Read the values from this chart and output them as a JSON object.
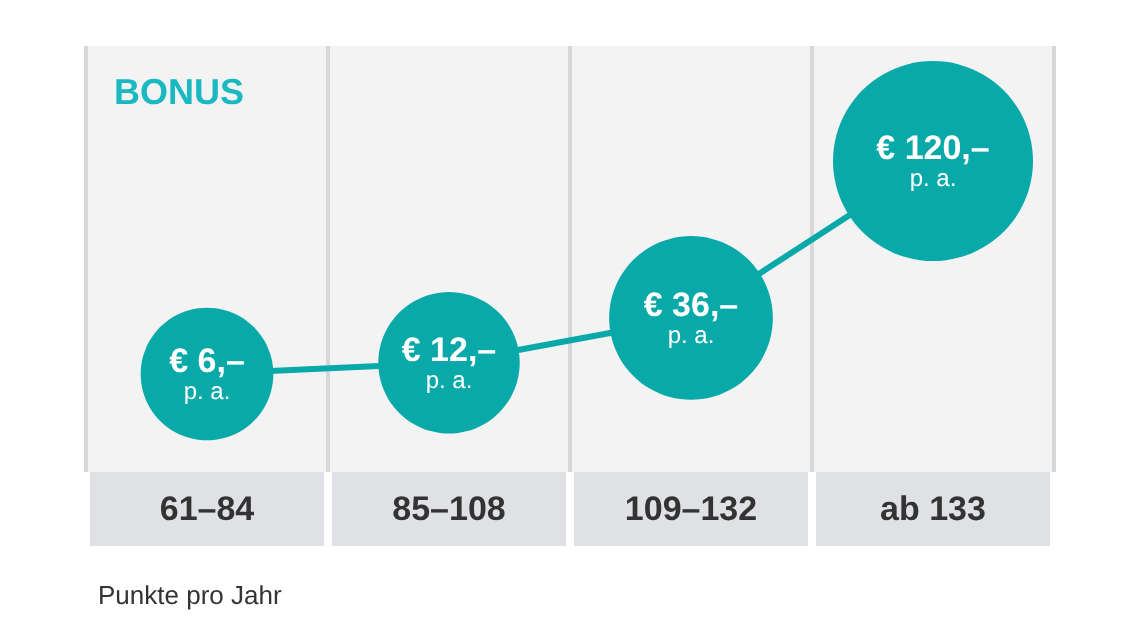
{
  "chart_data": {
    "type": "bubble",
    "title": "BONUS",
    "xlabel": "Punkte pro Jahr",
    "categories": [
      "61–84",
      "85–108",
      "109–132",
      "ab 133"
    ],
    "values": [
      6,
      12,
      36,
      120
    ],
    "sizes": [
      0.44,
      0.5,
      0.67,
      1
    ],
    "value_labels": [
      "€ 6,–\np. a.",
      "€ 12,–\np. a.",
      "€ 36,–\np. a.",
      "€ 120,–\np. a."
    ],
    "color": "#0aa9a9",
    "marker": "circle",
    "grid": "x"
  }
}
